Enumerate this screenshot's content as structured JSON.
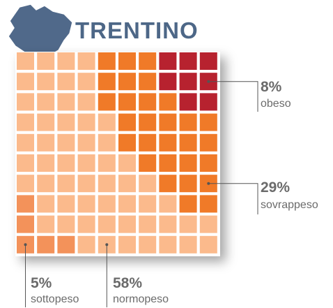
{
  "chart_data": {
    "type": "waffle",
    "title": "TRENTINO",
    "categories": [
      "obeso",
      "sovrappeso",
      "normopeso",
      "sottopeso"
    ],
    "values": [
      8,
      29,
      58,
      5
    ],
    "value_labels": [
      "8%",
      "29%",
      "58%",
      "5%"
    ],
    "colors": [
      "#b7222f",
      "#f07a28",
      "#fbba8c",
      "#f3925a"
    ]
  }
}
